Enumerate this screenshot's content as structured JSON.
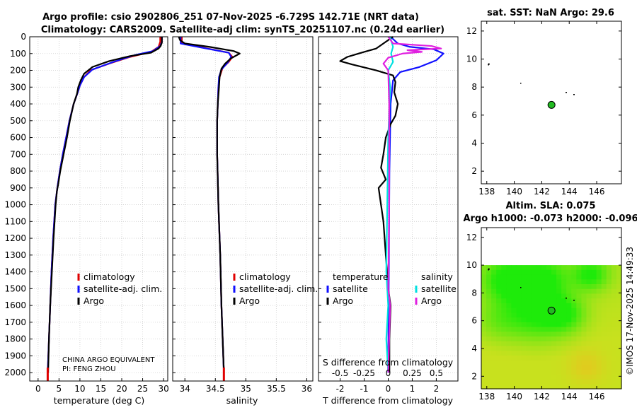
{
  "title_line1": "Argo profile: csio 2902806_251 07-Nov-2025 -6.729S 142.71E (NRT data)",
  "title_line2": "Climatology: CARS2009. Satellite-adj clim: synTS_20251107.nc (0.24d earlier)",
  "sst_title": "sat. SST: NaN Argo: 29.6",
  "sla_title1": "Altim. SLA: 0.075",
  "sla_title2": "Argo h1000: -0.073 h2000: -0.096",
  "timestamp": "©IMOS 17-Nov-2025 14:49:33",
  "credit_line1": "CHINA ARGO EQUIVALENT",
  "credit_line2": "PI: FENG ZHOU",
  "colors": {
    "climatology": "#e00000",
    "satellite": "#1010ff",
    "argo": "#000000",
    "sal_satellite": "#00e0e0",
    "sal_argo": "#e020e0",
    "float_marker": "#22bb22"
  },
  "chart_data": [
    {
      "type": "line",
      "panel": "temperature",
      "xlabel": "temperature (deg C)",
      "xlim": [
        -2,
        31
      ],
      "xticks": [
        "0",
        "5",
        "10",
        "15",
        "20",
        "25",
        "30"
      ],
      "ylim": [
        0,
        2050
      ],
      "yticks": [
        "0",
        "100",
        "200",
        "300",
        "400",
        "500",
        "600",
        "700",
        "800",
        "900",
        "1000",
        "1100",
        "1200",
        "1300",
        "1400",
        "1500",
        "1600",
        "1700",
        "1800",
        "1900",
        "2000"
      ],
      "legend": [
        "climatology",
        "satellite-adj. clim.",
        "Argo"
      ],
      "series": [
        {
          "name": "climatology",
          "color": "#e00000",
          "points": [
            [
              29.2,
              0
            ],
            [
              29.2,
              30
            ],
            [
              28.8,
              60
            ],
            [
              27,
              90
            ],
            [
              22,
              120
            ],
            [
              17,
              160
            ],
            [
              12.5,
              200
            ],
            [
              11,
              240
            ],
            [
              10,
              290
            ],
            [
              9.5,
              330
            ],
            [
              8.5,
              400
            ],
            [
              7.5,
              500
            ],
            [
              6.7,
              600
            ],
            [
              5.9,
              700
            ],
            [
              5.2,
              800
            ],
            [
              4.6,
              900
            ],
            [
              4.1,
              1000
            ],
            [
              3.6,
              1200
            ],
            [
              3.2,
              1400
            ],
            [
              2.9,
              1600
            ],
            [
              2.6,
              1800
            ],
            [
              2.3,
              2000
            ]
          ]
        },
        {
          "name": "satellite-adj. clim.",
          "color": "#1010ff",
          "points": [
            [
              29.6,
              0
            ],
            [
              29.6,
              30
            ],
            [
              29.2,
              55
            ],
            [
              27.5,
              85
            ],
            [
              23,
              110
            ],
            [
              18,
              150
            ],
            [
              13,
              195
            ],
            [
              11,
              240
            ],
            [
              10,
              290
            ],
            [
              9.5,
              330
            ],
            [
              8.5,
              400
            ],
            [
              7.5,
              500
            ],
            [
              6.7,
              600
            ],
            [
              5.9,
              700
            ],
            [
              5.2,
              800
            ],
            [
              4.6,
              900
            ],
            [
              4.1,
              1000
            ],
            [
              3.6,
              1200
            ],
            [
              3.2,
              1400
            ],
            [
              2.9,
              1600
            ],
            [
              2.6,
              1800
            ],
            [
              2.3,
              2000
            ]
          ]
        },
        {
          "name": "Argo",
          "color": "#000000",
          "points": [
            [
              29.6,
              0
            ],
            [
              29.6,
              35
            ],
            [
              29.3,
              55
            ],
            [
              28.8,
              70
            ],
            [
              27,
              95
            ],
            [
              22,
              115
            ],
            [
              17,
              145
            ],
            [
              13,
              180
            ],
            [
              11,
              220
            ],
            [
              10.2,
              260
            ],
            [
              9.6,
              300
            ],
            [
              9.3,
              340
            ],
            [
              8.5,
              400
            ],
            [
              7.6,
              500
            ],
            [
              6.9,
              600
            ],
            [
              6.1,
              700
            ],
            [
              5.3,
              800
            ],
            [
              4.8,
              880
            ],
            [
              4.5,
              920
            ],
            [
              4.2,
              1000
            ],
            [
              3.7,
              1200
            ],
            [
              3.3,
              1400
            ],
            [
              2.9,
              1600
            ],
            [
              2.6,
              1800
            ],
            [
              2.4,
              2000
            ]
          ]
        }
      ]
    },
    {
      "type": "line",
      "panel": "salinity",
      "xlabel": "salinity",
      "xlim": [
        33.8,
        36.1
      ],
      "xticks": [
        "34",
        "34.5",
        "35",
        "35.5",
        "36"
      ],
      "ylim": [
        0,
        2050
      ],
      "legend": [
        "climatology",
        "satellite-adj. clim.",
        "Argo"
      ],
      "series": [
        {
          "name": "climatology",
          "color": "#e00000",
          "points": [
            [
              33.95,
              0
            ],
            [
              33.95,
              40
            ],
            [
              34.3,
              65
            ],
            [
              34.72,
              95
            ],
            [
              34.78,
              120
            ],
            [
              34.72,
              150
            ],
            [
              34.62,
              185
            ],
            [
              34.57,
              240
            ],
            [
              34.55,
              300
            ],
            [
              34.54,
              400
            ],
            [
              34.53,
              500
            ],
            [
              34.53,
              700
            ],
            [
              34.55,
              1000
            ],
            [
              34.58,
              1300
            ],
            [
              34.6,
              1600
            ],
            [
              34.62,
              1800
            ],
            [
              34.64,
              2000
            ]
          ]
        },
        {
          "name": "satellite-adj. clim.",
          "color": "#1010ff",
          "points": [
            [
              33.93,
              0
            ],
            [
              33.93,
              40
            ],
            [
              34.28,
              65
            ],
            [
              34.72,
              95
            ],
            [
              34.76,
              120
            ],
            [
              34.7,
              155
            ],
            [
              34.6,
              195
            ],
            [
              34.56,
              240
            ],
            [
              34.55,
              300
            ],
            [
              34.54,
              400
            ],
            [
              34.53,
              500
            ],
            [
              34.53,
              700
            ],
            [
              34.55,
              1000
            ],
            [
              34.58,
              1300
            ],
            [
              34.6,
              1600
            ],
            [
              34.62,
              1800
            ],
            [
              34.64,
              2000
            ]
          ]
        },
        {
          "name": "Argo",
          "color": "#000000",
          "points": [
            [
              33.9,
              0
            ],
            [
              33.92,
              20
            ],
            [
              34.0,
              40
            ],
            [
              34.4,
              60
            ],
            [
              34.8,
              85
            ],
            [
              34.9,
              100
            ],
            [
              34.75,
              130
            ],
            [
              34.66,
              160
            ],
            [
              34.6,
              190
            ],
            [
              34.57,
              240
            ],
            [
              34.56,
              300
            ],
            [
              34.54,
              400
            ],
            [
              34.53,
              500
            ],
            [
              34.53,
              700
            ],
            [
              34.55,
              1000
            ],
            [
              34.58,
              1300
            ],
            [
              34.6,
              1600
            ],
            [
              34.62,
              1800
            ],
            [
              34.64,
              2000
            ]
          ]
        }
      ]
    },
    {
      "type": "line",
      "panel": "difference",
      "xlabel": "T difference from climatology",
      "xlabel_top": "S difference from climatology",
      "xlim": [
        -2.9,
        2.9
      ],
      "xticks": [
        "-2",
        "-1",
        "0",
        "1",
        "2"
      ],
      "xticks_top": [
        "-0.5",
        "-0.25",
        "0",
        "0.25",
        "0.5"
      ],
      "ylim": [
        0,
        2050
      ],
      "legend_headers": [
        "temperature",
        "salinity"
      ],
      "legend": [
        "satellite",
        "Argo",
        "satellite",
        "Argo"
      ],
      "series": [
        {
          "name": "T satellite",
          "color": "#1010ff",
          "points": [
            [
              0.1,
              0
            ],
            [
              0.4,
              40
            ],
            [
              0.9,
              60
            ],
            [
              1.9,
              75
            ],
            [
              2.3,
              100
            ],
            [
              2.0,
              140
            ],
            [
              1.3,
              180
            ],
            [
              0.5,
              210
            ],
            [
              0.2,
              260
            ],
            [
              0.1,
              400
            ],
            [
              0.05,
              800
            ],
            [
              0.0,
              2000
            ]
          ]
        },
        {
          "name": "T Argo",
          "color": "#000000",
          "points": [
            [
              0.2,
              0
            ],
            [
              -0.2,
              40
            ],
            [
              -0.5,
              70
            ],
            [
              -1.0,
              90
            ],
            [
              -1.7,
              120
            ],
            [
              -2.0,
              145
            ],
            [
              -1.5,
              165
            ],
            [
              -0.5,
              200
            ],
            [
              0.2,
              230
            ],
            [
              0.3,
              270
            ],
            [
              0.25,
              330
            ],
            [
              0.4,
              400
            ],
            [
              0.3,
              470
            ],
            [
              0.1,
              520
            ],
            [
              -0.1,
              600
            ],
            [
              -0.2,
              700
            ],
            [
              -0.3,
              780
            ],
            [
              -0.1,
              850
            ],
            [
              -0.4,
              900
            ],
            [
              -0.3,
              1000
            ],
            [
              -0.2,
              1100
            ],
            [
              -0.1,
              1300
            ],
            [
              0.0,
              1500
            ],
            [
              0.1,
              1600
            ],
            [
              0.05,
              1800
            ],
            [
              0.05,
              2000
            ]
          ]
        },
        {
          "name": "S satellite",
          "color": "#00e0e0",
          "points": [
            [
              0.02,
              0
            ],
            [
              0.05,
              60
            ],
            [
              0.03,
              100
            ],
            [
              0.05,
              150
            ],
            [
              0.0,
              200
            ],
            [
              0.02,
              300
            ],
            [
              0.0,
              600
            ],
            [
              -0.02,
              1400
            ],
            [
              0.0,
              1600
            ],
            [
              -0.02,
              1800
            ],
            [
              0.0,
              2000
            ]
          ]
        },
        {
          "name": "S Argo",
          "color": "#e020e0",
          "points": [
            [
              0.0,
              0
            ],
            [
              0.05,
              40
            ],
            [
              0.45,
              55
            ],
            [
              0.55,
              70
            ],
            [
              0.2,
              80
            ],
            [
              0.35,
              90
            ],
            [
              0.15,
              100
            ],
            [
              0.0,
              125
            ],
            [
              -0.05,
              160
            ],
            [
              0.0,
              200
            ],
            [
              0.01,
              400
            ],
            [
              0.01,
              1000
            ],
            [
              0.0,
              1500
            ],
            [
              0.02,
              1600
            ],
            [
              0.0,
              2000
            ]
          ]
        }
      ]
    },
    {
      "type": "scatter",
      "panel": "sat_sst_map",
      "xlim": [
        137.6,
        147.8
      ],
      "ylim": [
        1.1,
        12.7
      ],
      "xticks": [
        "138",
        "140",
        "142",
        "144",
        "146"
      ],
      "yticks": [
        "2",
        "4",
        "6",
        "8",
        "10",
        "12"
      ],
      "argo_position": {
        "lon": 142.71,
        "lat": 6.73
      }
    },
    {
      "type": "heatmap",
      "panel": "altimeter_sla_map",
      "xlim": [
        137.6,
        147.8
      ],
      "ylim": [
        1.1,
        12.7
      ],
      "xticks": [
        "138",
        "140",
        "142",
        "144",
        "146"
      ],
      "yticks": [
        "2",
        "4",
        "6",
        "8",
        "10",
        "12"
      ],
      "data_top_lat": 10,
      "argo_position": {
        "lon": 142.71,
        "lat": 6.73
      }
    }
  ]
}
